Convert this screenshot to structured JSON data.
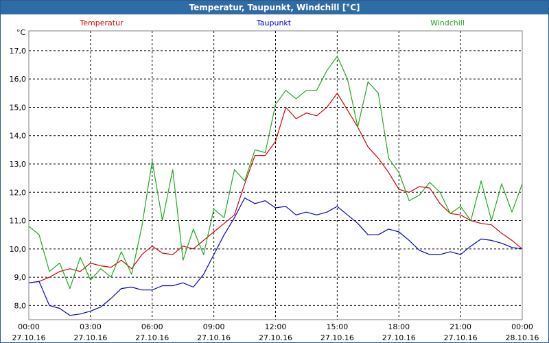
{
  "window_title": "Temperatur, Taupunkt, Windchill [°C]",
  "colors": {
    "title_bar": "#2f6ba4",
    "temperatur": "#d40000",
    "taupunkt": "#0000c8",
    "windchill": "#1caa1c",
    "grid": "#000000",
    "plot_border": "#808080"
  },
  "chart_data": {
    "type": "line",
    "title": "Temperatur, Taupunkt, Windchill [°C]",
    "ylabel": "°C",
    "xlabel": "",
    "xlim": [
      0,
      24
    ],
    "ylim": [
      7.5,
      17.7
    ],
    "grid": true,
    "legend_placement": "top",
    "y_ticks": [
      "8,0",
      "9,0",
      "10,0",
      "11,0",
      "12,0",
      "13,0",
      "14,0",
      "15,0",
      "16,0",
      "17,0"
    ],
    "x_ticks": [
      {
        "time": "00:00",
        "date": "27.10.16"
      },
      {
        "time": "03:00",
        "date": "27.10.16"
      },
      {
        "time": "06:00",
        "date": "27.10.16"
      },
      {
        "time": "09:00",
        "date": "27.10.16"
      },
      {
        "time": "12:00",
        "date": "27.10.16"
      },
      {
        "time": "15:00",
        "date": "27.10.16"
      },
      {
        "time": "18:00",
        "date": "27.10.16"
      },
      {
        "time": "21:00",
        "date": "27.10.16"
      },
      {
        "time": "00:00",
        "date": "28.10.16"
      }
    ],
    "x_hours": [
      0,
      0.5,
      1,
      1.5,
      2,
      2.5,
      3,
      3.5,
      4,
      4.5,
      5,
      5.5,
      6,
      6.5,
      7,
      7.5,
      8,
      8.5,
      9,
      9.5,
      10,
      10.5,
      11,
      11.5,
      12,
      12.5,
      13,
      13.5,
      14,
      14.5,
      15,
      15.5,
      16,
      16.5,
      17,
      17.5,
      18,
      18.5,
      19,
      19.5,
      20,
      20.5,
      21,
      21.5,
      22,
      22.5,
      23,
      23.5,
      24
    ],
    "series": [
      {
        "name": "Temperatur",
        "values": [
          8.8,
          8.85,
          9.0,
          9.2,
          9.3,
          9.2,
          9.5,
          9.4,
          9.35,
          9.6,
          9.3,
          9.8,
          10.1,
          9.85,
          9.8,
          10.1,
          10.0,
          10.3,
          10.6,
          10.9,
          11.2,
          12.3,
          13.3,
          13.3,
          13.8,
          15.0,
          14.6,
          14.8,
          14.7,
          15.0,
          15.5,
          14.9,
          14.3,
          13.6,
          13.2,
          12.7,
          12.1,
          12.0,
          12.2,
          12.15,
          11.6,
          11.25,
          11.2,
          11.0,
          10.9,
          10.85,
          10.55,
          10.3,
          10.0
        ]
      },
      {
        "name": "Taupunkt",
        "values": [
          8.8,
          8.85,
          8.0,
          7.9,
          7.65,
          7.7,
          7.8,
          7.95,
          8.25,
          8.6,
          8.65,
          8.55,
          8.55,
          8.7,
          8.7,
          8.8,
          8.65,
          9.1,
          9.8,
          10.5,
          11.1,
          11.8,
          11.6,
          11.7,
          11.45,
          11.5,
          11.2,
          11.3,
          11.2,
          11.3,
          11.5,
          11.2,
          10.9,
          10.5,
          10.5,
          10.7,
          10.6,
          10.3,
          9.95,
          9.8,
          9.8,
          9.9,
          9.8,
          10.1,
          10.35,
          10.3,
          10.2,
          10.05,
          10.0
        ]
      },
      {
        "name": "Windchill",
        "values": [
          10.8,
          10.5,
          9.2,
          9.5,
          8.6,
          9.7,
          8.9,
          9.3,
          9.0,
          9.9,
          9.1,
          10.8,
          13.1,
          11.0,
          12.8,
          9.6,
          10.7,
          9.8,
          11.4,
          11.1,
          12.8,
          12.4,
          13.5,
          13.4,
          15.1,
          15.6,
          15.3,
          15.6,
          15.6,
          16.3,
          16.8,
          16.0,
          14.3,
          15.9,
          15.5,
          13.2,
          12.7,
          11.7,
          11.9,
          12.35,
          12.0,
          11.25,
          11.5,
          11.0,
          12.4,
          11.0,
          12.3,
          11.3,
          12.3
        ]
      }
    ]
  }
}
